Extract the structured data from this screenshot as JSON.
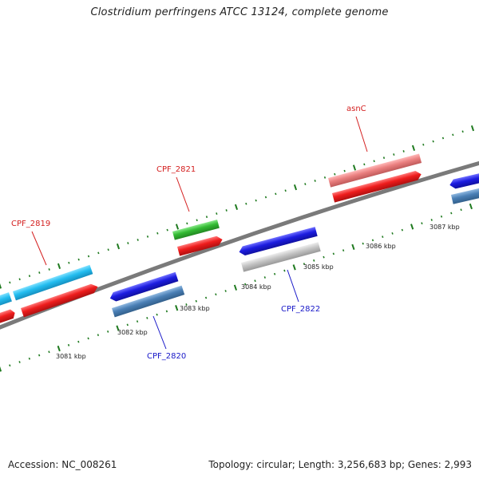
{
  "title": "Clostridium perfringens ATCC 13124, complete genome",
  "footer": {
    "accession": "Accession: NC_008261",
    "summary": "Topology: circular; Length: 3,256,683 bp; Genes: 2,993"
  },
  "scale_labels": [
    "3081 kbp",
    "3082 kbp",
    "3083 kbp",
    "3084 kbp",
    "3085 kbp",
    "3086 kbp",
    "3087 kbp"
  ],
  "gene_labels": {
    "top": [
      "CPF_2819",
      "CPF_2821",
      "asnC"
    ],
    "bottom": [
      "CPF_2820",
      "CPF_2822"
    ]
  },
  "colors": {
    "backbone": "#7a7a7a",
    "tick": "#1f7a1f",
    "top_label": "#d42020",
    "bottom_label": "#1818c8",
    "cyan": "#22bdf0",
    "red": "#ee1c1c",
    "green": "#33bb33",
    "pink": "#ea7f7f",
    "blue": "#1c1ce0",
    "steel": "#4a7fb5",
    "grey": "#c4c4c4"
  }
}
